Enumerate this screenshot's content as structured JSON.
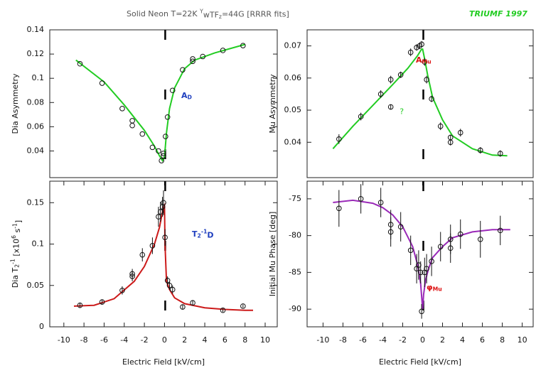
{
  "header": {
    "title_parts": [
      "Solid Neon T=22K  ",
      {
        "text": "Y",
        "style": "sup"
      },
      "wTF",
      {
        "text": "z",
        "style": "sub"
      },
      "=44G [RRRR fits]"
    ],
    "note": "TRIUMF 1997"
  },
  "chart_data": [
    {
      "type": "scatter",
      "y_label": [
        "Dia Asymmetry"
      ],
      "annotation": [
        "A",
        {
          "text": "D",
          "style": "sub"
        }
      ],
      "annotation_color": "#1f3fbf",
      "xlim": [
        -11.4,
        11.2
      ],
      "ylim": [
        0.018,
        0.14
      ],
      "yticks": [
        0.04,
        0.06,
        0.08,
        0.1,
        0.12,
        0.14
      ],
      "x": [
        -8.4,
        -6.2,
        -4.2,
        -3.2,
        -3.2,
        -2.2,
        -1.2,
        -0.6,
        -0.3,
        -0.1,
        -0.1,
        0.1,
        0.3,
        0.8,
        1.8,
        2.8,
        2.8,
        3.8,
        5.8,
        7.8
      ],
      "values": [
        0.112,
        0.096,
        0.075,
        0.065,
        0.061,
        0.054,
        0.043,
        0.04,
        0.032,
        0.036,
        0.038,
        0.052,
        0.068,
        0.09,
        0.107,
        0.114,
        0.116,
        0.118,
        0.123,
        0.127
      ],
      "fit_x": [
        -8.8,
        -6,
        -4,
        -2,
        -1,
        -0.5,
        -0.2,
        0,
        0.2,
        0.5,
        1,
        2,
        3,
        5,
        8
      ],
      "fit_values": [
        0.115,
        0.097,
        0.078,
        0.057,
        0.044,
        0.036,
        0.032,
        0.035,
        0.055,
        0.075,
        0.092,
        0.108,
        0.115,
        0.121,
        0.128
      ],
      "fit_color": "#22cc22"
    },
    {
      "type": "scatter",
      "y_label": [
        "Mu Asymmetry"
      ],
      "annotation": [
        "A",
        {
          "text": "Mu",
          "style": "sub"
        }
      ],
      "annotation_color": "#dd1111",
      "extra_note": "?",
      "xlim": [
        -11.6,
        11.1
      ],
      "ylim": [
        0.029,
        0.075
      ],
      "yticks": [
        0.04,
        0.05,
        0.06,
        0.07
      ],
      "x": [
        -8.4,
        -6.2,
        -4.2,
        -3.2,
        -3.2,
        -2.2,
        -1.2,
        -0.6,
        -0.3,
        -0.1,
        0.2,
        0.4,
        0.9,
        1.8,
        2.8,
        2.8,
        3.8,
        5.8,
        7.8
      ],
      "values": [
        0.041,
        0.048,
        0.055,
        0.0595,
        0.051,
        0.061,
        0.068,
        0.0695,
        0.07,
        0.0705,
        0.065,
        0.0595,
        0.0535,
        0.045,
        0.04,
        0.0415,
        0.043,
        0.0375,
        0.0365
      ],
      "errors": [
        0.0015,
        0.0012,
        0.0012,
        0.0012,
        0.0008,
        0.001,
        0.0012,
        0.001,
        0.001,
        0.001,
        0.0012,
        0.0012,
        0.001,
        0.0012,
        0.001,
        0.0008,
        0.0012,
        0.001,
        0.001
      ],
      "fit_x": [
        -9,
        -7,
        -5,
        -3,
        -1.5,
        -0.5,
        -0.1,
        0,
        0.2,
        0.5,
        1,
        2,
        3,
        5,
        7,
        8.5
      ],
      "fit_values": [
        0.038,
        0.045,
        0.0515,
        0.058,
        0.063,
        0.067,
        0.069,
        0.069,
        0.066,
        0.061,
        0.054,
        0.047,
        0.042,
        0.038,
        0.036,
        0.0358
      ],
      "fit_color": "#22cc22"
    },
    {
      "type": "scatter",
      "y_label": [
        "Dia T",
        {
          "text": "2",
          "style": "sub"
        },
        {
          "text": "-1",
          "style": "sup"
        },
        " [x10",
        {
          "text": "6",
          "style": "sup"
        },
        " s",
        {
          "text": "-1",
          "style": "sup"
        },
        "]"
      ],
      "annotation": [
        "T",
        {
          "text": "2",
          "style": "sub"
        },
        {
          "text": "-1",
          "style": "sup"
        },
        "D"
      ],
      "annotation_color": "#1f3fbf",
      "x_label": "Electric Field [kV/cm]",
      "xlim": [
        -11.4,
        11.2
      ],
      "xticks": [
        -10,
        -8,
        -6,
        -4,
        -2,
        0,
        2,
        4,
        6,
        8,
        10
      ],
      "ylim": [
        0,
        0.176
      ],
      "yticks": [
        0,
        0.05,
        0.1,
        0.15
      ],
      "x": [
        -8.4,
        -6.2,
        -4.2,
        -3.2,
        -3.2,
        -2.2,
        -1.2,
        -0.6,
        -0.4,
        -0.2,
        -0.1,
        0.05,
        0.3,
        0.5,
        0.8,
        1.8,
        2.8,
        5.8,
        7.8
      ],
      "values": [
        0.026,
        0.03,
        0.044,
        0.061,
        0.064,
        0.087,
        0.098,
        0.133,
        0.139,
        0.145,
        0.15,
        0.108,
        0.056,
        0.05,
        0.045,
        0.024,
        0.029,
        0.02,
        0.025
      ],
      "errors": [
        0.003,
        0.003,
        0.005,
        0.006,
        0.006,
        0.008,
        0.01,
        0.012,
        0.012,
        0.012,
        0.015,
        0.01,
        0.005,
        0.005,
        0.005,
        0.003,
        0.003,
        0.002,
        0.002
      ],
      "fit_x": [
        -9,
        -7,
        -5,
        -3,
        -2,
        -1,
        -0.5,
        -0.1,
        0,
        0.05,
        0.2,
        0.5,
        1,
        2,
        4,
        6,
        8,
        8.8
      ],
      "fit_values": [
        0.025,
        0.026,
        0.034,
        0.055,
        0.073,
        0.1,
        0.12,
        0.145,
        0.147,
        0.1,
        0.055,
        0.045,
        0.035,
        0.028,
        0.023,
        0.021,
        0.02,
        0.02
      ],
      "fit_color": "#cc1a1a"
    },
    {
      "type": "scatter",
      "y_label": [
        "Initial Mu Phase [deg]"
      ],
      "annotation": [
        "φ",
        {
          "text": "Mu",
          "style": "sub"
        }
      ],
      "annotation_color": "#dd1111",
      "x_label": "Electric Field [kV/cm]",
      "xlim": [
        -11.6,
        11.1
      ],
      "xticks": [
        -10,
        -8,
        -6,
        -4,
        -2,
        0,
        2,
        4,
        6,
        8,
        10
      ],
      "ylim": [
        -92.4,
        -72.6
      ],
      "yticks": [
        -90,
        -85,
        -80,
        -75
      ],
      "x": [
        -8.4,
        -6.2,
        -4.2,
        -3.2,
        -3.2,
        -2.2,
        -1.2,
        -0.6,
        -0.4,
        -0.2,
        -0.1,
        0.2,
        0.4,
        0.9,
        1.8,
        2.8,
        2.8,
        3.8,
        5.8,
        7.8
      ],
      "values": [
        -76.3,
        -75,
        -75.5,
        -78.5,
        -79.5,
        -78.8,
        -82,
        -84.5,
        -84,
        -85,
        -90.3,
        -85,
        -84.5,
        -83.5,
        -81.5,
        -80.5,
        -81.7,
        -79.8,
        -80.5,
        -79.3
      ],
      "errors": [
        2.5,
        2,
        2,
        2,
        2,
        2,
        2,
        2,
        2,
        1.5,
        1,
        2,
        2,
        2,
        2,
        2,
        2,
        2,
        2.5,
        2
      ],
      "fit_x": [
        -9,
        -7,
        -5,
        -4,
        -3,
        -2,
        -1,
        -0.5,
        -0.2,
        0,
        0.1,
        0.3,
        0.6,
        1,
        2,
        3,
        5,
        7,
        8.8
      ],
      "fit_values": [
        -75.5,
        -75.2,
        -75.6,
        -76.2,
        -77.2,
        -78.8,
        -81.5,
        -84,
        -86.5,
        -90,
        -88,
        -86,
        -84.5,
        -83,
        -81.5,
        -80.3,
        -79.5,
        -79.2,
        -79.2
      ],
      "fit_color": "#9a2ab8"
    }
  ]
}
